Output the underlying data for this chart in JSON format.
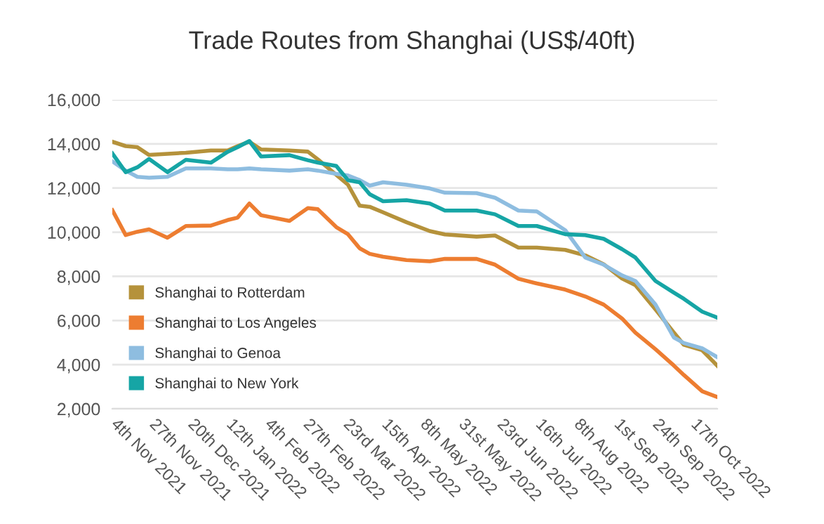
{
  "chart_data": {
    "type": "line",
    "title": "Trade Routes from Shanghai (US$/40ft)",
    "x": [
      "2021-10-31",
      "2021-11-08",
      "2021-11-15",
      "2021-11-22",
      "2021-12-03",
      "2021-12-14",
      "2021-12-29",
      "2022-01-08",
      "2022-01-14",
      "2022-01-21",
      "2022-01-28",
      "2022-02-14",
      "2022-02-25",
      "2022-03-03",
      "2022-03-14",
      "2022-03-21",
      "2022-03-28",
      "2022-04-03",
      "2022-04-11",
      "2022-04-25",
      "2022-05-09",
      "2022-05-18",
      "2022-06-06",
      "2022-06-17",
      "2022-07-01",
      "2022-07-12",
      "2022-07-29",
      "2022-08-10",
      "2022-08-21",
      "2022-09-01",
      "2022-09-09",
      "2022-09-21",
      "2022-10-02",
      "2022-10-08",
      "2022-10-19",
      "2022-10-28"
    ],
    "series": [
      {
        "name": "Shanghai to Rotterdam",
        "color": "#b5923b",
        "values": [
          14100,
          13900,
          13850,
          13500,
          13550,
          13600,
          13700,
          13700,
          13900,
          14100,
          13750,
          13700,
          13650,
          13300,
          12600,
          12150,
          11200,
          11150,
          10900,
          10450,
          10050,
          9900,
          9800,
          9850,
          9300,
          9300,
          9200,
          8950,
          8550,
          7900,
          7600,
          6500,
          5450,
          4900,
          4650,
          3950
        ]
      },
      {
        "name": "Shanghai to Los Angeles",
        "color": "#ed7d31",
        "values": [
          11000,
          9870,
          10020,
          10130,
          9750,
          10280,
          10300,
          10550,
          10660,
          11300,
          10770,
          10510,
          11090,
          11040,
          10230,
          9910,
          9270,
          9020,
          8890,
          8740,
          8680,
          8790,
          8790,
          8530,
          7890,
          7680,
          7400,
          7090,
          6720,
          6090,
          5450,
          4700,
          3960,
          3530,
          2790,
          2530
        ]
      },
      {
        "name": "Shanghai to Genoa",
        "color": "#8ebde0",
        "values": [
          13210,
          12790,
          12510,
          12470,
          12510,
          12890,
          12890,
          12850,
          12850,
          12890,
          12850,
          12790,
          12850,
          12790,
          12640,
          12570,
          12360,
          12110,
          12260,
          12150,
          11980,
          11790,
          11770,
          11560,
          10980,
          10940,
          10090,
          8850,
          8530,
          8040,
          7790,
          6720,
          5230,
          4980,
          4740,
          4340
        ]
      },
      {
        "name": "Shanghai to New York",
        "color": "#16a5a5",
        "values": [
          13570,
          12720,
          12940,
          13320,
          12720,
          13280,
          13150,
          13640,
          13850,
          14130,
          13430,
          13490,
          13260,
          13150,
          13000,
          12360,
          12260,
          11720,
          11400,
          11450,
          11300,
          10980,
          10980,
          10810,
          10280,
          10280,
          9910,
          9870,
          9700,
          9230,
          8850,
          7790,
          7260,
          6980,
          6400,
          6130
        ]
      }
    ],
    "xlim": [
      "2021-10-31",
      "2022-10-28"
    ],
    "xticks": [
      {
        "value": "2021-11-04",
        "label": "4th Nov 2021"
      },
      {
        "value": "2021-11-27",
        "label": "27th Nov 2021"
      },
      {
        "value": "2021-12-20",
        "label": "20th Dec 2021"
      },
      {
        "value": "2022-01-12",
        "label": "12th Jan 2022"
      },
      {
        "value": "2022-02-04",
        "label": "4th Feb 2022"
      },
      {
        "value": "2022-02-27",
        "label": "27th Feb 2022"
      },
      {
        "value": "2022-03-23",
        "label": "23rd Mar 2022"
      },
      {
        "value": "2022-04-15",
        "label": "15th Apr 2022"
      },
      {
        "value": "2022-05-08",
        "label": "8th May 2022"
      },
      {
        "value": "2022-05-31",
        "label": "31st May 2022"
      },
      {
        "value": "2022-06-23",
        "label": "23rd Jun 2022"
      },
      {
        "value": "2022-07-16",
        "label": "16th Jul 2022"
      },
      {
        "value": "2022-08-08",
        "label": "8th Aug 2022"
      },
      {
        "value": "2022-09-01",
        "label": "1st Sep 2022"
      },
      {
        "value": "2022-09-24",
        "label": "24th Sep 2022"
      },
      {
        "value": "2022-10-17",
        "label": "17th Oct 2022"
      }
    ],
    "ylim": [
      2000,
      16000
    ],
    "yticks": [
      {
        "value": 2000,
        "label": "2,000"
      },
      {
        "value": 4000,
        "label": "4,000"
      },
      {
        "value": 6000,
        "label": "6,000"
      },
      {
        "value": 8000,
        "label": "8,000"
      },
      {
        "value": 10000,
        "label": "10,000"
      },
      {
        "value": 12000,
        "label": "12,000"
      },
      {
        "value": 14000,
        "label": "14,000"
      },
      {
        "value": 16000,
        "label": "16,000"
      }
    ],
    "grid": "y",
    "legend": "bottom left",
    "marker": "none",
    "line_style": "solid"
  }
}
